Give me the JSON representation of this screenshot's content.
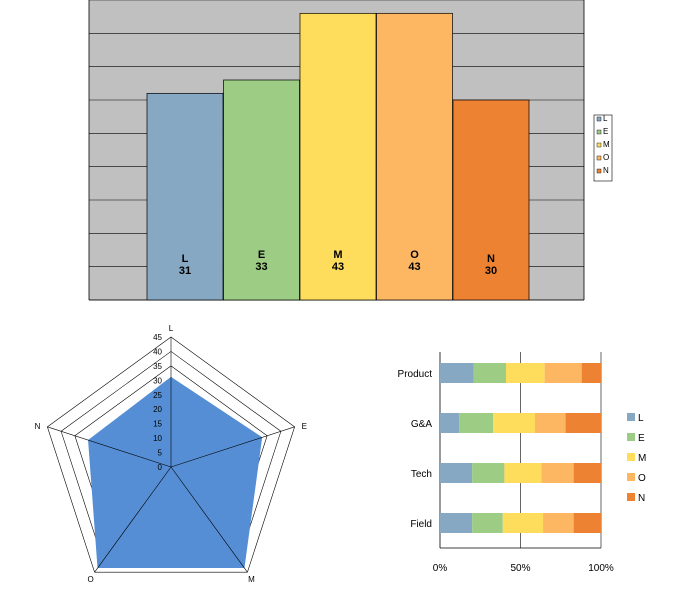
{
  "chart_data": [
    {
      "type": "bar",
      "categories": [
        "L",
        "E",
        "M",
        "O",
        "N"
      ],
      "values": [
        31,
        33,
        43,
        43,
        30
      ],
      "colors": [
        "#86a8c3",
        "#9dcd84",
        "#fedd5c",
        "#fdb763",
        "#ed8233"
      ],
      "ylim": [
        0,
        45
      ],
      "grid": true,
      "background": "#c0c0c0",
      "legend": {
        "position": "right",
        "entries": [
          "L",
          "E",
          "M",
          "O",
          "N"
        ]
      }
    },
    {
      "type": "radar",
      "axes": [
        "L",
        "E",
        "M",
        "O",
        "N"
      ],
      "values": [
        31,
        33,
        43,
        43,
        30
      ],
      "rlim": [
        0,
        45
      ],
      "ticks": [
        "0",
        "5",
        "10",
        "15",
        "20",
        "25",
        "30",
        "35",
        "40",
        "45"
      ],
      "fill_color": "#558ed5"
    },
    {
      "type": "bar",
      "orientation": "horizontal",
      "stacked_percent": true,
      "categories": [
        "Product",
        "G&A",
        "Tech",
        "Field"
      ],
      "series": [
        {
          "name": "L",
          "values": [
            21,
            12,
            20,
            20
          ],
          "color": "#86a8c3"
        },
        {
          "name": "E",
          "values": [
            20,
            21,
            20,
            19
          ],
          "color": "#9dcd84"
        },
        {
          "name": "M",
          "values": [
            24,
            26,
            23,
            25
          ],
          "color": "#fedd5c"
        },
        {
          "name": "O",
          "values": [
            23,
            19,
            20,
            19
          ],
          "color": "#fdb763"
        },
        {
          "name": "N",
          "values": [
            12,
            22,
            17,
            17
          ],
          "color": "#ed8233"
        }
      ],
      "xticks": [
        "0%",
        "50%",
        "100%"
      ],
      "xlim": [
        0,
        100
      ],
      "legend": {
        "position": "right",
        "entries": [
          "L",
          "E",
          "M",
          "O",
          "N"
        ]
      }
    }
  ]
}
